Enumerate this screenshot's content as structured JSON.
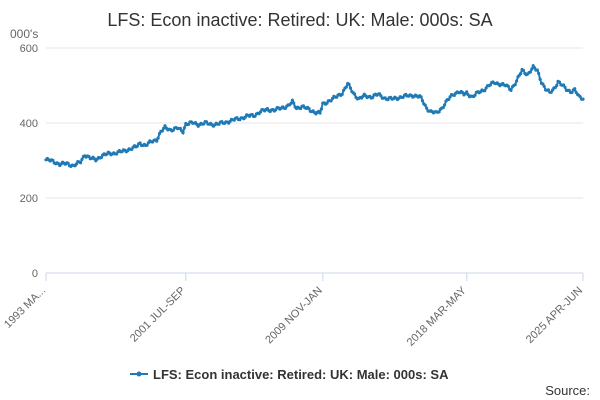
{
  "chart_data": {
    "type": "line",
    "title": "LFS: Econ inactive: Retired: UK: Male: 000s: SA",
    "y_unit_label": "000's",
    "ylim": [
      0,
      600
    ],
    "y_ticks": [
      0,
      200,
      400,
      600
    ],
    "x_tick_labels": [
      "1993 MA...",
      "2001 JUL-SEP",
      "2009 NOV-JAN",
      "2018 MAR-MAY",
      "2025 APR-JUN"
    ],
    "x_tick_index": [
      0,
      101,
      200,
      304,
      388
    ],
    "grid": true,
    "legend_position": "bottom",
    "series": [
      {
        "name": "LFS: Econ inactive: Retired: UK: Male: 000s: SA",
        "color": "#1f7ab6",
        "anchors": [
          [
            0,
            302
          ],
          [
            5,
            298
          ],
          [
            10,
            290
          ],
          [
            15,
            292
          ],
          [
            20,
            286
          ],
          [
            25,
            296
          ],
          [
            28,
            316
          ],
          [
            32,
            306
          ],
          [
            36,
            302
          ],
          [
            40,
            312
          ],
          [
            45,
            318
          ],
          [
            50,
            320
          ],
          [
            55,
            324
          ],
          [
            60,
            330
          ],
          [
            65,
            336
          ],
          [
            68,
            346
          ],
          [
            72,
            340
          ],
          [
            76,
            350
          ],
          [
            80,
            356
          ],
          [
            83,
            376
          ],
          [
            86,
            388
          ],
          [
            90,
            382
          ],
          [
            95,
            386
          ],
          [
            99,
            378
          ],
          [
            101,
            398
          ],
          [
            106,
            400
          ],
          [
            110,
            396
          ],
          [
            115,
            400
          ],
          [
            120,
            396
          ],
          [
            125,
            398
          ],
          [
            130,
            402
          ],
          [
            135,
            408
          ],
          [
            140,
            412
          ],
          [
            145,
            418
          ],
          [
            150,
            420
          ],
          [
            155,
            430
          ],
          [
            160,
            436
          ],
          [
            165,
            434
          ],
          [
            170,
            440
          ],
          [
            175,
            446
          ],
          [
            178,
            456
          ],
          [
            181,
            440
          ],
          [
            185,
            444
          ],
          [
            190,
            436
          ],
          [
            195,
            428
          ],
          [
            198,
            426
          ],
          [
            200,
            450
          ],
          [
            205,
            460
          ],
          [
            210,
            470
          ],
          [
            214,
            480
          ],
          [
            218,
            504
          ],
          [
            222,
            480
          ],
          [
            226,
            464
          ],
          [
            230,
            472
          ],
          [
            235,
            470
          ],
          [
            240,
            476
          ],
          [
            245,
            466
          ],
          [
            250,
            464
          ],
          [
            255,
            468
          ],
          [
            260,
            472
          ],
          [
            265,
            474
          ],
          [
            270,
            470
          ],
          [
            272,
            460
          ],
          [
            275,
            440
          ],
          [
            278,
            430
          ],
          [
            282,
            426
          ],
          [
            286,
            440
          ],
          [
            290,
            460
          ],
          [
            294,
            476
          ],
          [
            298,
            484
          ],
          [
            302,
            476
          ],
          [
            304,
            480
          ],
          [
            308,
            470
          ],
          [
            312,
            480
          ],
          [
            316,
            488
          ],
          [
            320,
            500
          ],
          [
            324,
            508
          ],
          [
            328,
            504
          ],
          [
            332,
            500
          ],
          [
            336,
            490
          ],
          [
            340,
            512
          ],
          [
            344,
            540
          ],
          [
            348,
            530
          ],
          [
            352,
            548
          ],
          [
            355,
            540
          ],
          [
            358,
            510
          ],
          [
            361,
            490
          ],
          [
            364,
            480
          ],
          [
            367,
            492
          ],
          [
            370,
            510
          ],
          [
            373,
            500
          ],
          [
            376,
            490
          ],
          [
            379,
            484
          ],
          [
            382,
            488
          ],
          [
            385,
            470
          ],
          [
            388,
            466
          ]
        ]
      }
    ],
    "source_label": "Source:"
  }
}
